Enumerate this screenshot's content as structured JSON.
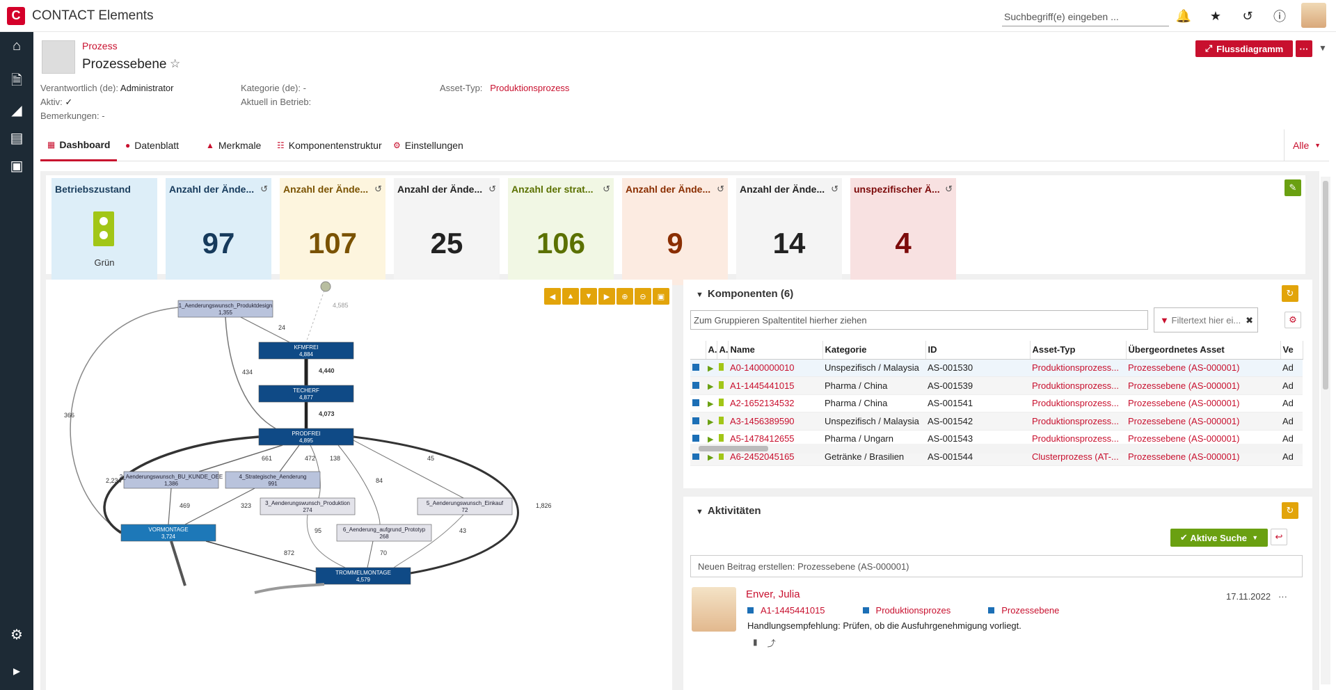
{
  "app": {
    "logo_letter": "C",
    "name": "CONTACT Elements"
  },
  "top": {
    "search_placeholder": "Suchbegriff(e) eingeben ..."
  },
  "header": {
    "breadcrumb": "Prozess",
    "title": "Prozessebene",
    "primary_button": "Flussdiagramm",
    "more": "···"
  },
  "meta": {
    "owner_label": "Verantwortlich (de):",
    "owner_value": "Administrator",
    "active_label": "Aktiv:",
    "active_value": "✓",
    "remarks_label": "Bemerkungen:",
    "remarks_value": "-",
    "category_label": "Kategorie (de):",
    "category_value": "-",
    "inop_label": "Aktuell in Betrieb:",
    "inop_value": "",
    "assettype_label": "Asset-Typ:",
    "assettype_value": "Produktionsprozess"
  },
  "tabs": [
    "Dashboard",
    "Datenblatt",
    "Merkmale",
    "Komponentenstruktur",
    "Einstellungen"
  ],
  "tabs_right": "Alle",
  "tiles": [
    {
      "title": "Betriebszustand",
      "value": "",
      "sub": "Grün",
      "bg": "#ddeef8",
      "color": "#1c3f5e"
    },
    {
      "title": "Anzahl der Ände...",
      "value": "97",
      "bg": "#ddeef8",
      "color": "#163a5c"
    },
    {
      "title": "Anzahl der Ände...",
      "value": "107",
      "bg": "#fdf5de",
      "color": "#7a5200"
    },
    {
      "title": "Anzahl der Ände...",
      "value": "25",
      "bg": "#f4f4f4",
      "color": "#222222"
    },
    {
      "title": "Anzahl der strat...",
      "value": "106",
      "bg": "#f1f7e4",
      "color": "#5b7100"
    },
    {
      "title": "Anzahl der Ände...",
      "value": "9",
      "bg": "#fcebe1",
      "color": "#8a2e00"
    },
    {
      "title": "Anzahl der Ände...",
      "value": "14",
      "bg": "#f4f4f4",
      "color": "#222222"
    },
    {
      "title": "unspezifischer Ä...",
      "value": "4",
      "bg": "#f8e1e1",
      "color": "#7c0a0a"
    }
  ],
  "graph": {
    "nodes": [
      {
        "id": "n1",
        "label": "1_Aenderungswunsch_Produktdesign",
        "count": "1,355"
      },
      {
        "id": "n2",
        "label": "KFMFREI",
        "count": "4,884"
      },
      {
        "id": "n3",
        "label": "TECHERF",
        "count": "4,877"
      },
      {
        "id": "n4",
        "label": "PRODFREI",
        "count": "4,895"
      },
      {
        "id": "n5",
        "label": "2_Aenderungswunsch_BU_KUNDE_OEE",
        "count": "1,386"
      },
      {
        "id": "n6",
        "label": "4_Strategische_Aenderung",
        "count": "991"
      },
      {
        "id": "n7",
        "label": "3_Aenderungswunsch_Produktion",
        "count": "274"
      },
      {
        "id": "n8",
        "label": "5_Aenderungswunsch_Einkauf",
        "count": "72"
      },
      {
        "id": "n9",
        "label": "6_Aenderung_aufgrund_Prototyp",
        "count": "268"
      },
      {
        "id": "n10",
        "label": "VORMONTAGE",
        "count": "3,724"
      },
      {
        "id": "n11",
        "label": "TROMMELMONTAGE",
        "count": "4,579"
      }
    ],
    "edge_labels": [
      "4,585",
      "24",
      "4,440",
      "434",
      "4,073",
      "366",
      "661",
      "472",
      "138",
      "45",
      "84",
      "2,234",
      "469",
      "323",
      "95",
      "43",
      "872",
      "70",
      "1,826"
    ]
  },
  "components": {
    "title": "Komponenten (6)",
    "group_hint": "Zum Gruppieren Spaltentitel hierher ziehen",
    "filter_placeholder": "Filtertext hier ei...",
    "columns": [
      "A..",
      "A..",
      "Name",
      "Kategorie",
      "ID",
      "Asset-Typ",
      "Übergeordnetes Asset",
      "Ve"
    ],
    "rows": [
      {
        "name": "A0-1400000010",
        "cat": "Unspezifisch / Malaysia",
        "id": "AS-001530",
        "type": "Produktionsprozess...",
        "parent": "Prozessebene (AS-000001)",
        "ve": "Ad"
      },
      {
        "name": "A1-1445441015",
        "cat": "Pharma / China",
        "id": "AS-001539",
        "type": "Produktionsprozess...",
        "parent": "Prozessebene (AS-000001)",
        "ve": "Ad"
      },
      {
        "name": "A2-1652134532",
        "cat": "Pharma / China",
        "id": "AS-001541",
        "type": "Produktionsprozess...",
        "parent": "Prozessebene (AS-000001)",
        "ve": "Ad"
      },
      {
        "name": "A3-1456389590",
        "cat": "Unspezifisch / Malaysia",
        "id": "AS-001542",
        "type": "Produktionsprozess...",
        "parent": "Prozessebene (AS-000001)",
        "ve": "Ad"
      },
      {
        "name": "A5-1478412655",
        "cat": "Pharma / Ungarn",
        "id": "AS-001543",
        "type": "Produktionsprozess...",
        "parent": "Prozessebene (AS-000001)",
        "ve": "Ad"
      },
      {
        "name": "A6-2452045165",
        "cat": "Getränke / Brasilien",
        "id": "AS-001544",
        "type": "Clusterprozess (AT-...",
        "parent": "Prozessebene (AS-000001)",
        "ve": "Ad"
      }
    ]
  },
  "activities": {
    "title": "Aktivitäten",
    "search_button": "Aktive Suche",
    "new_post": "Neuen Beitrag erstellen: Prozessebene (AS-000001)",
    "post": {
      "author": "Enver, Julia",
      "date": "17.11.2022",
      "links": [
        "A1-1445441015",
        "Produktionsprozes",
        "Prozessebene"
      ],
      "text": "Handlungsempfehlung: Prüfen, ob die Ausfuhrgenehmigung vorliegt."
    }
  }
}
